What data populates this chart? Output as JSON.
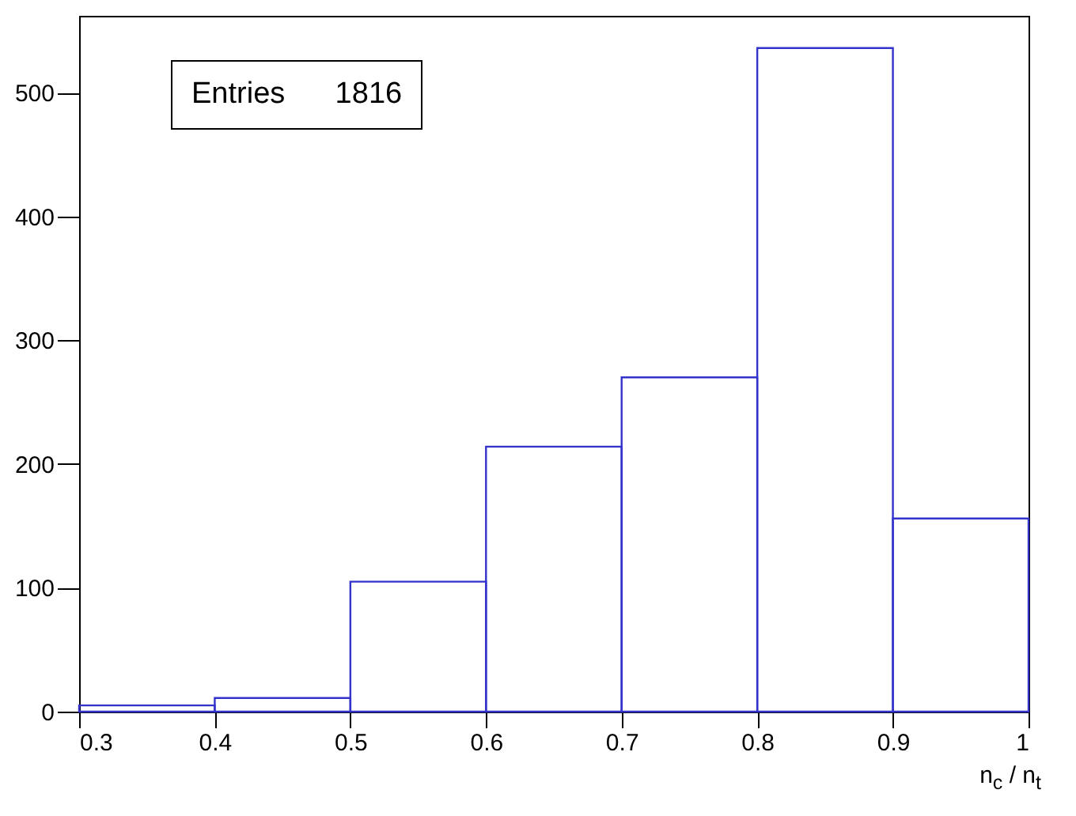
{
  "chart_data": {
    "type": "histogram",
    "bins": [
      0.3,
      0.4,
      0.5,
      0.6,
      0.7,
      0.8,
      0.9,
      1.0
    ],
    "values": [
      5,
      11,
      105,
      214,
      270,
      536,
      156
    ],
    "color": "#3333cc",
    "xlabel": "n$_{c}$ / n$_{t}$",
    "xlim": [
      0.3,
      1.0
    ],
    "xticks": [
      0.3,
      0.4,
      0.5,
      0.6,
      0.7,
      0.8,
      0.9,
      1
    ],
    "ylim": [
      0,
      562
    ],
    "yticks": [
      0,
      100,
      200,
      300,
      400,
      500
    ],
    "annotations": [
      "Entries      1816"
    ]
  }
}
